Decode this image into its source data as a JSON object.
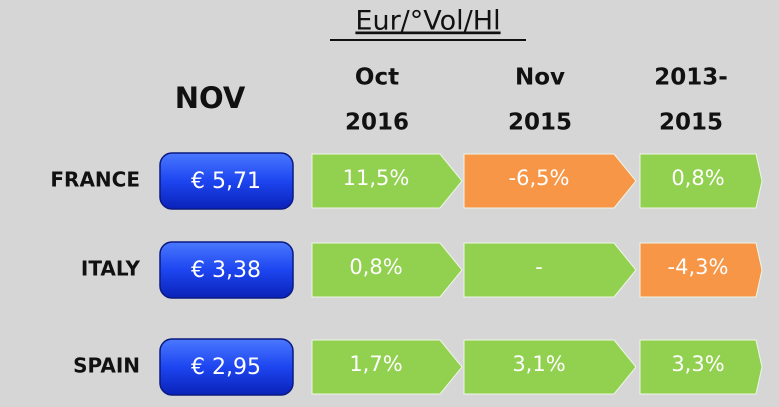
{
  "title": "Eur/°Vol/Hl",
  "month_header": "NOV",
  "columns": [
    [
      "Oct",
      "2016"
    ],
    [
      "Nov",
      "2015"
    ],
    [
      "2013-",
      "2015"
    ]
  ],
  "rows": [
    {
      "country": "FRANCE",
      "price": "€ 5,71",
      "changes": [
        {
          "text": "11,5%",
          "color": "#92d050"
        },
        {
          "text": "-6,5%",
          "color": "#f79646"
        },
        {
          "text": "0,8%",
          "color": "#92d050"
        }
      ]
    },
    {
      "country": "ITALY",
      "price": "€ 3,38",
      "changes": [
        {
          "text": "0,8%",
          "color": "#92d050"
        },
        {
          "text": "-",
          "color": "#92d050"
        },
        {
          "text": "-4,3%",
          "color": "#f79646"
        }
      ]
    },
    {
      "country": "SPAIN",
      "price": "€ 2,95",
      "changes": [
        {
          "text": "1,7%",
          "color": "#92d050"
        },
        {
          "text": "3,1%",
          "color": "#92d050"
        },
        {
          "text": "3,3%",
          "color": "#92d050"
        }
      ]
    }
  ]
}
